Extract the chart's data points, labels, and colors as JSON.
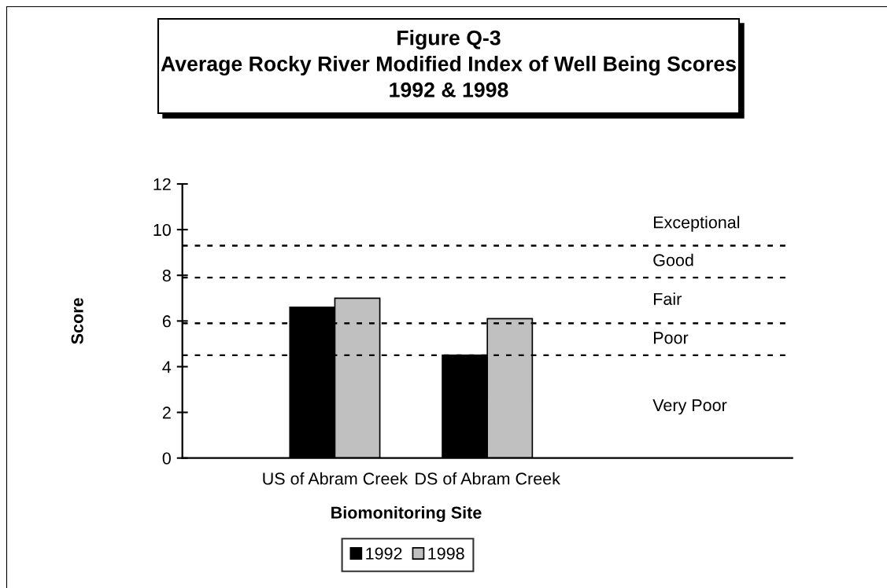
{
  "chart_data": {
    "type": "bar",
    "title": "Figure Q-3\nAverage Rocky River Modified Index of Well Being Scores\n1992 & 1998",
    "xlabel": "Biomonitoring Site",
    "ylabel": "Score",
    "categories": [
      null,
      "US of Abram Creek",
      "DS of Abram Creek",
      null,
      null
    ],
    "series": [
      {
        "name": "1992",
        "color": "#000000",
        "values": [
          null,
          6.6,
          4.5,
          null,
          null
        ]
      },
      {
        "name": "1998",
        "color": "#c0c0c0",
        "values": [
          null,
          7.0,
          6.1,
          null,
          null
        ]
      }
    ],
    "ylim": [
      0,
      12
    ],
    "yticks": [
      0,
      2,
      4,
      6,
      8,
      10,
      12
    ],
    "ref_lines": [
      {
        "axis": "y",
        "value": 9.3,
        "color": "#000000",
        "line_style": "dashed"
      },
      {
        "axis": "y",
        "value": 7.9,
        "color": "#000000",
        "line_style": "dashed"
      },
      {
        "axis": "y",
        "value": 5.9,
        "color": "#000000",
        "line_style": "dashed"
      },
      {
        "axis": "y",
        "value": 4.5,
        "color": "#000000",
        "line_style": "dashed"
      }
    ],
    "annotations": [
      "Exceptional",
      "Good",
      "Fair",
      "Poor",
      "Very Poor"
    ],
    "legend": "bottom"
  }
}
